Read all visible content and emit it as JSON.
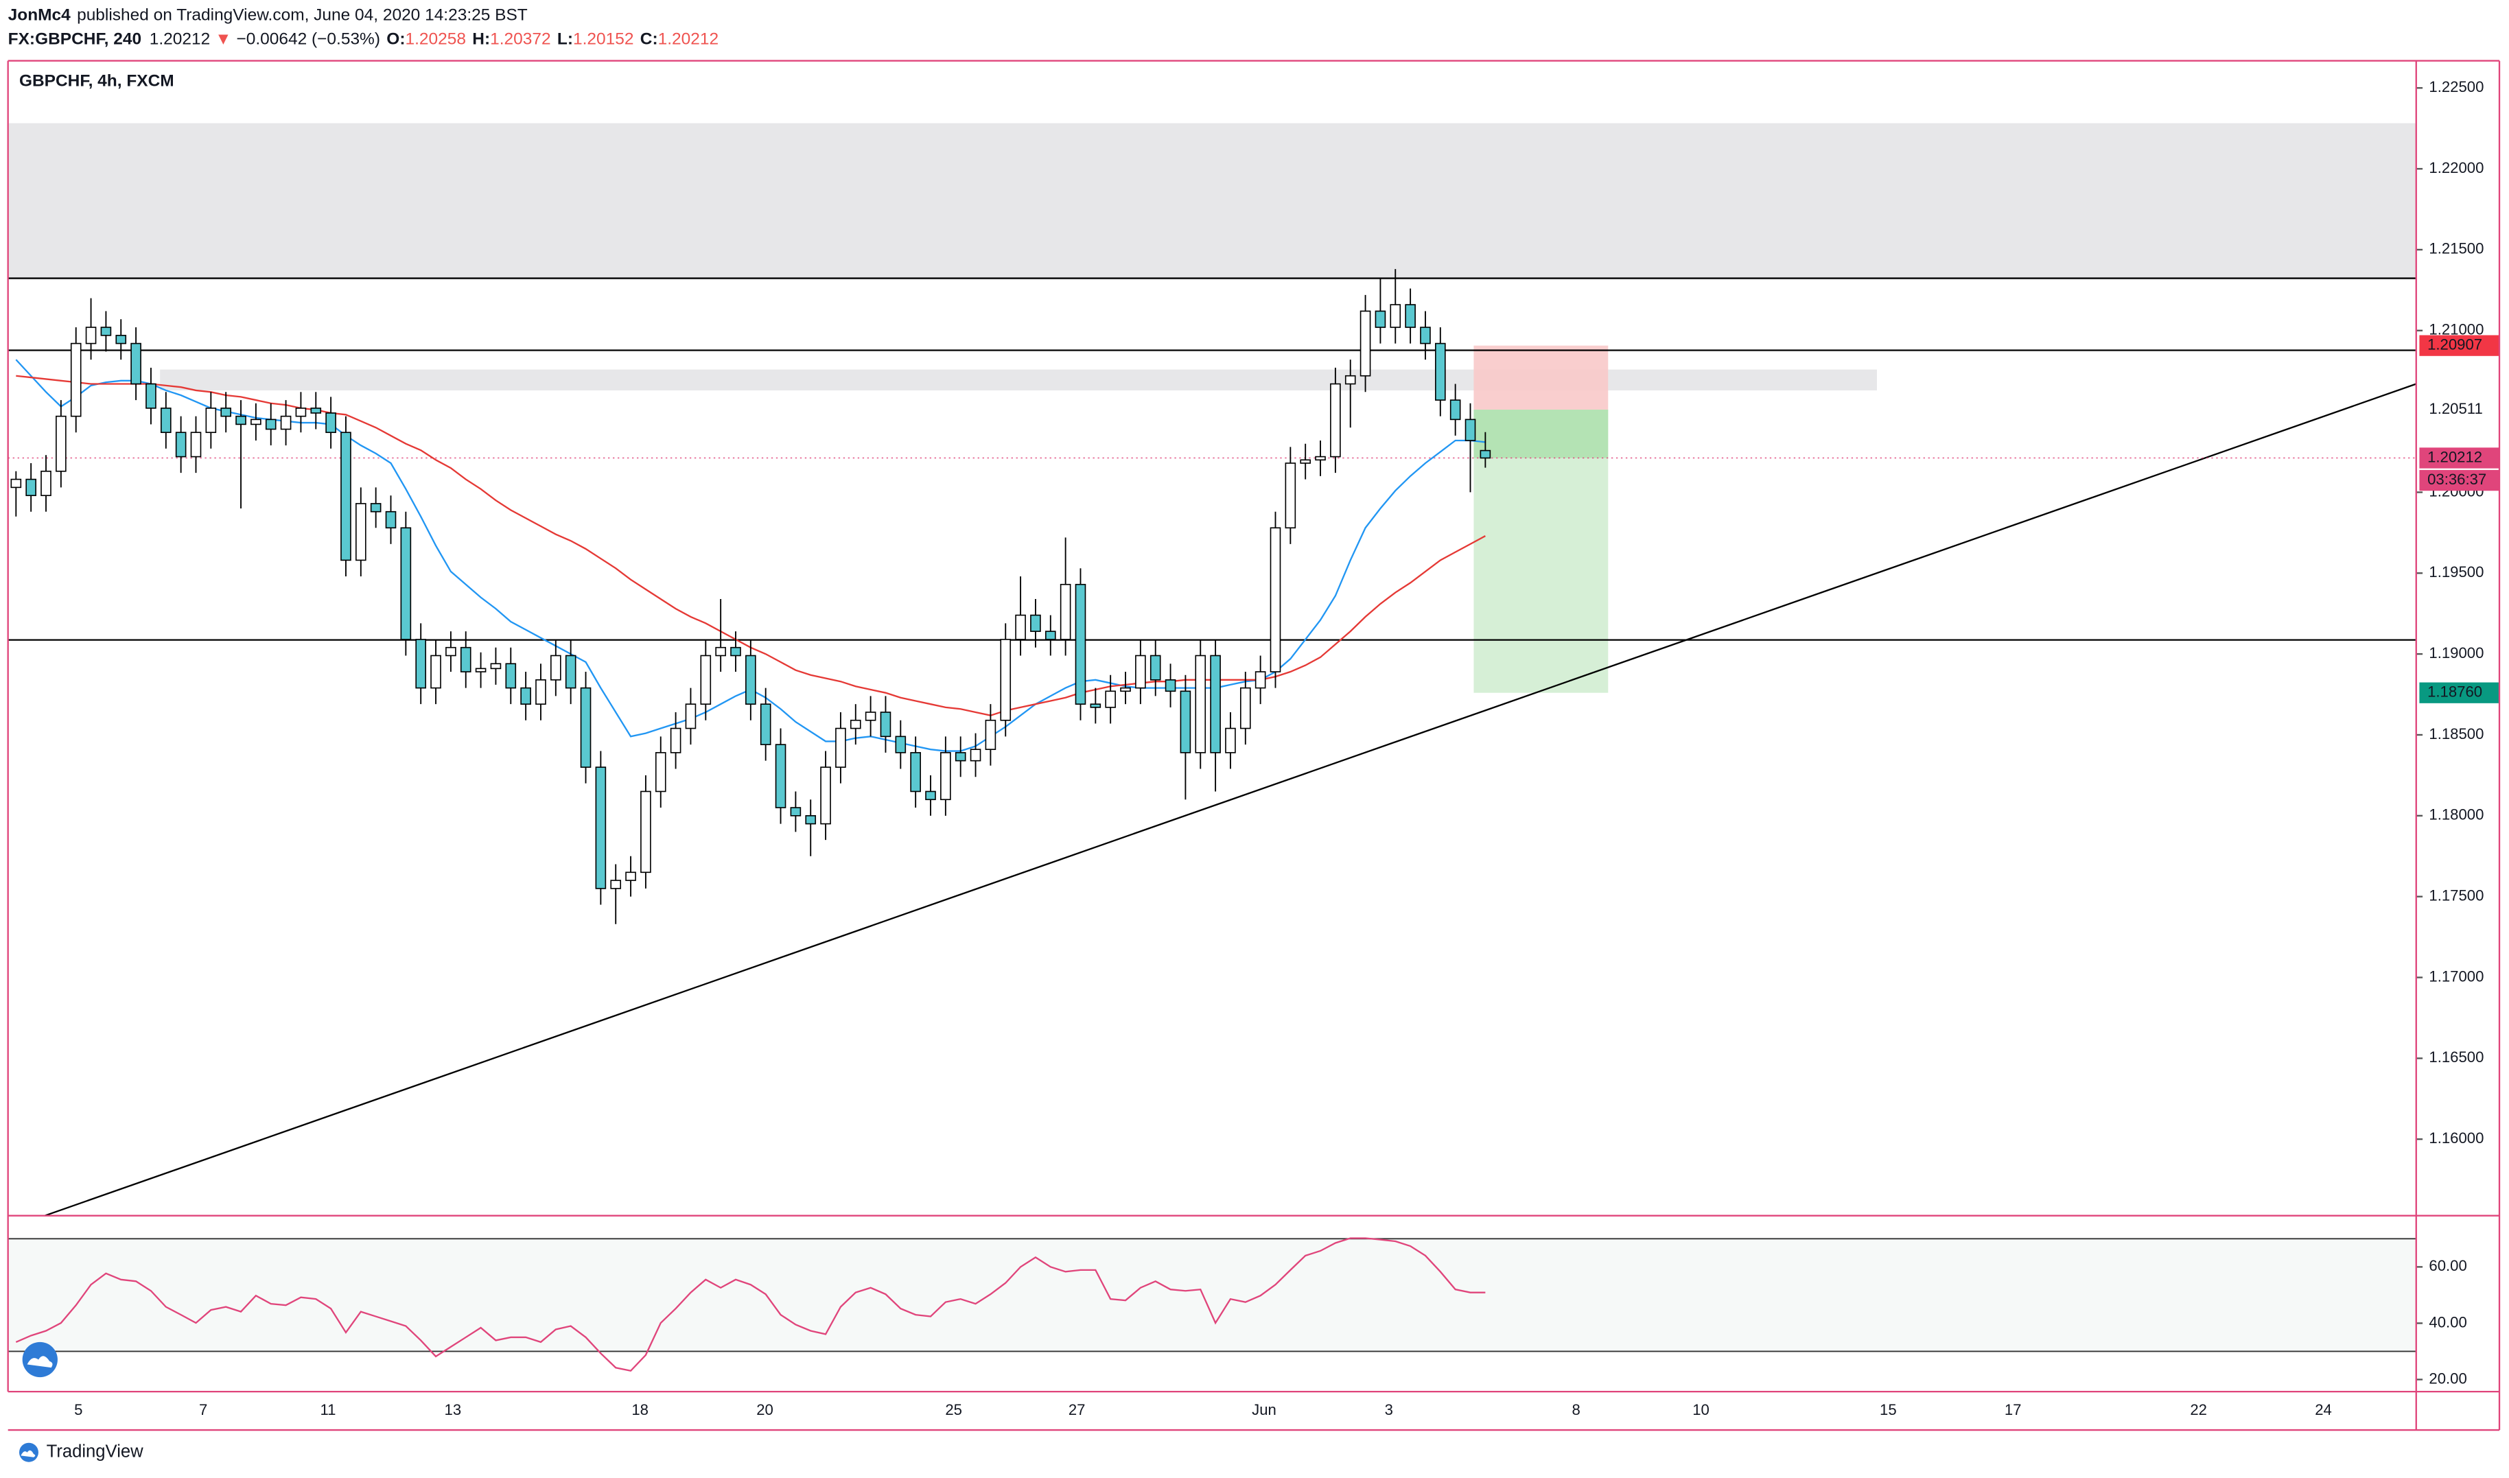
{
  "header": {
    "author": "JonMc4",
    "published": "published on TradingView.com, June 04, 2020 14:23:25 BST",
    "symbol": "FX:GBPCHF, 240",
    "last": "1.20212",
    "arrow": "▼",
    "change": "−0.00642 (−0.53%)",
    "ohlc": [
      {
        "label": "O:",
        "value": "1.20258"
      },
      {
        "label": "H:",
        "value": "1.20372"
      },
      {
        "label": "L:",
        "value": "1.20152"
      },
      {
        "label": "C:",
        "value": "1.20212"
      }
    ]
  },
  "footer": {
    "brand": "TradingView"
  },
  "chart_data": {
    "type": "candlestick",
    "title": "GBPCHF, 4h, FXCM",
    "candles": [
      [
        1.2003,
        1.2013,
        1.1985,
        1.2008
      ],
      [
        1.2008,
        1.2018,
        1.1988,
        1.1998
      ],
      [
        1.1998,
        1.2023,
        1.1988,
        1.2013
      ],
      [
        1.2013,
        1.2057,
        1.2003,
        1.2047
      ],
      [
        1.2047,
        1.2102,
        1.2037,
        1.2092
      ],
      [
        1.2092,
        1.212,
        1.2082,
        1.2102
      ],
      [
        1.2102,
        1.2112,
        1.2087,
        1.2097
      ],
      [
        1.2097,
        1.2107,
        1.2082,
        1.2092
      ],
      [
        1.2092,
        1.2102,
        1.2057,
        1.2067
      ],
      [
        1.2067,
        1.2077,
        1.2042,
        1.2052
      ],
      [
        1.2052,
        1.2062,
        1.2027,
        1.2037
      ],
      [
        1.2037,
        1.2047,
        1.2012,
        1.2022
      ],
      [
        1.2022,
        1.2047,
        1.2012,
        1.2037
      ],
      [
        1.2037,
        1.2062,
        1.2027,
        1.2052
      ],
      [
        1.2052,
        1.2062,
        1.2037,
        1.2047
      ],
      [
        1.2047,
        1.2057,
        1.199,
        1.2042
      ],
      [
        1.2042,
        1.2055,
        1.2032,
        1.2045
      ],
      [
        1.2045,
        1.2055,
        1.2029,
        1.2039
      ],
      [
        1.2039,
        1.2057,
        1.2029,
        1.2047
      ],
      [
        1.2047,
        1.2062,
        1.2037,
        1.2052
      ],
      [
        1.2052,
        1.2062,
        1.2039,
        1.2049
      ],
      [
        1.2049,
        1.2059,
        1.2027,
        1.2037
      ],
      [
        1.2037,
        1.2047,
        1.1948,
        1.1958
      ],
      [
        1.1958,
        1.2003,
        1.1948,
        1.1993
      ],
      [
        1.1993,
        1.2003,
        1.1978,
        1.1988
      ],
      [
        1.1988,
        1.1998,
        1.1968,
        1.1978
      ],
      [
        1.1978,
        1.1988,
        1.1899,
        1.1909
      ],
      [
        1.1909,
        1.1919,
        1.1869,
        1.1879
      ],
      [
        1.1879,
        1.1909,
        1.1869,
        1.1899
      ],
      [
        1.1899,
        1.1914,
        1.1889,
        1.1904
      ],
      [
        1.1904,
        1.1914,
        1.1879,
        1.1889
      ],
      [
        1.1889,
        1.1901,
        1.1879,
        1.1891
      ],
      [
        1.1891,
        1.1904,
        1.1881,
        1.1894
      ],
      [
        1.1894,
        1.1904,
        1.1869,
        1.1879
      ],
      [
        1.1879,
        1.1889,
        1.1859,
        1.1869
      ],
      [
        1.1869,
        1.1894,
        1.1859,
        1.1884
      ],
      [
        1.1884,
        1.1909,
        1.1874,
        1.1899
      ],
      [
        1.1899,
        1.1909,
        1.1869,
        1.1879
      ],
      [
        1.1879,
        1.1889,
        1.182,
        1.183
      ],
      [
        1.183,
        1.184,
        1.1745,
        1.1755
      ],
      [
        1.1755,
        1.177,
        1.1733,
        1.176
      ],
      [
        1.176,
        1.1775,
        1.175,
        1.1765
      ],
      [
        1.1765,
        1.1825,
        1.1755,
        1.1815
      ],
      [
        1.1815,
        1.1849,
        1.1805,
        1.1839
      ],
      [
        1.1839,
        1.1864,
        1.1829,
        1.1854
      ],
      [
        1.1854,
        1.1879,
        1.1844,
        1.1869
      ],
      [
        1.1869,
        1.1909,
        1.1859,
        1.1899
      ],
      [
        1.1899,
        1.1934,
        1.1889,
        1.1904
      ],
      [
        1.1904,
        1.1914,
        1.1889,
        1.1899
      ],
      [
        1.1899,
        1.1909,
        1.1859,
        1.1869
      ],
      [
        1.1869,
        1.1879,
        1.1834,
        1.1844
      ],
      [
        1.1844,
        1.1854,
        1.1795,
        1.1805
      ],
      [
        1.1805,
        1.1815,
        1.179,
        1.18
      ],
      [
        1.18,
        1.181,
        1.1775,
        1.1795
      ],
      [
        1.1795,
        1.184,
        1.1785,
        1.183
      ],
      [
        1.183,
        1.1864,
        1.182,
        1.1854
      ],
      [
        1.1854,
        1.1869,
        1.1844,
        1.1859
      ],
      [
        1.1859,
        1.1874,
        1.1849,
        1.1864
      ],
      [
        1.1864,
        1.1874,
        1.1839,
        1.1849
      ],
      [
        1.1849,
        1.1859,
        1.1829,
        1.1839
      ],
      [
        1.1839,
        1.1849,
        1.1805,
        1.1815
      ],
      [
        1.1815,
        1.1825,
        1.18,
        1.181
      ],
      [
        1.181,
        1.1849,
        1.18,
        1.1839
      ],
      [
        1.1839,
        1.1849,
        1.1824,
        1.1834
      ],
      [
        1.1834,
        1.1851,
        1.1824,
        1.1841
      ],
      [
        1.1841,
        1.1869,
        1.1831,
        1.1859
      ],
      [
        1.1859,
        1.1919,
        1.1849,
        1.1909
      ],
      [
        1.1909,
        1.1948,
        1.1899,
        1.1924
      ],
      [
        1.1924,
        1.1934,
        1.1904,
        1.1914
      ],
      [
        1.1914,
        1.1924,
        1.1899,
        1.1909
      ],
      [
        1.1909,
        1.1972,
        1.1899,
        1.1943
      ],
      [
        1.1943,
        1.1953,
        1.1859,
        1.1869
      ],
      [
        1.1869,
        1.1879,
        1.1857,
        1.1867
      ],
      [
        1.1867,
        1.1887,
        1.1857,
        1.1877
      ],
      [
        1.1877,
        1.1889,
        1.1869,
        1.1879
      ],
      [
        1.1879,
        1.1909,
        1.1869,
        1.1899
      ],
      [
        1.1899,
        1.1909,
        1.1874,
        1.1884
      ],
      [
        1.1884,
        1.1894,
        1.1867,
        1.1877
      ],
      [
        1.1877,
        1.1887,
        1.181,
        1.1839
      ],
      [
        1.1839,
        1.1909,
        1.1829,
        1.1899
      ],
      [
        1.1899,
        1.1909,
        1.1815,
        1.1839
      ],
      [
        1.1839,
        1.1864,
        1.1829,
        1.1854
      ],
      [
        1.1854,
        1.1889,
        1.1844,
        1.1879
      ],
      [
        1.1879,
        1.1899,
        1.1869,
        1.1889
      ],
      [
        1.1889,
        1.1988,
        1.1879,
        1.1978
      ],
      [
        1.1978,
        1.2028,
        1.1968,
        1.2018
      ],
      [
        1.2018,
        1.203,
        1.2008,
        1.202
      ],
      [
        1.202,
        1.2032,
        1.201,
        1.2022
      ],
      [
        1.2022,
        1.2077,
        1.2012,
        1.2067
      ],
      [
        1.2067,
        1.2082,
        1.204,
        1.2072
      ],
      [
        1.2072,
        1.2122,
        1.2062,
        1.2112
      ],
      [
        1.2112,
        1.2132,
        1.2092,
        1.2102
      ],
      [
        1.2102,
        1.2138,
        1.2092,
        1.2116
      ],
      [
        1.2116,
        1.2126,
        1.2092,
        1.2102
      ],
      [
        1.2102,
        1.2112,
        1.2082,
        1.2092
      ],
      [
        1.2092,
        1.2102,
        1.2047,
        1.2057
      ],
      [
        1.2057,
        1.2067,
        1.2035,
        1.2045
      ],
      [
        1.2045,
        1.2055,
        1.2,
        1.2032
      ],
      [
        1.20258,
        1.20372,
        1.20152,
        1.20212
      ]
    ],
    "up_color": "#ffffff",
    "down_color": "#5ac8d0",
    "moving_averages": [
      {
        "color": "#2196f3",
        "values": [
          1.2082,
          1.2072,
          1.2062,
          1.2053,
          1.2059,
          1.2066,
          1.2068,
          1.2069,
          1.2069,
          1.2067,
          1.2063,
          1.206,
          1.2056,
          1.2052,
          1.205,
          1.2048,
          1.2046,
          1.2045,
          1.2044,
          1.2043,
          1.2043,
          1.2042,
          1.2035,
          1.2029,
          1.2024,
          1.2018,
          1.2002,
          1.1985,
          1.1967,
          1.1951,
          1.1943,
          1.1935,
          1.1928,
          1.192,
          1.1915,
          1.191,
          1.1905,
          1.19,
          1.1895,
          1.1879,
          1.1864,
          1.1849,
          1.1851,
          1.1854,
          1.1857,
          1.186,
          1.1864,
          1.1869,
          1.1874,
          1.1878,
          1.1873,
          1.1866,
          1.1858,
          1.1852,
          1.1846,
          1.1846,
          1.1848,
          1.1849,
          1.1847,
          1.1845,
          1.1843,
          1.1841,
          1.184,
          1.184,
          1.1843,
          1.1849,
          1.1855,
          1.1862,
          1.1869,
          1.1874,
          1.1879,
          1.1883,
          1.1884,
          1.1882,
          1.188,
          1.1879,
          1.1879,
          1.1879,
          1.1879,
          1.1879,
          1.1879,
          1.1881,
          1.1883,
          1.1884,
          1.1889,
          1.1897,
          1.1909,
          1.1921,
          1.1936,
          1.1958,
          1.1978,
          1.199,
          1.2001,
          1.201,
          1.2018,
          1.2025,
          1.2032,
          1.2032,
          1.2031
        ]
      },
      {
        "color": "#e53935",
        "values": [
          1.2072,
          1.2071,
          1.207,
          1.2069,
          1.2068,
          1.2067,
          1.2067,
          1.2067,
          1.2067,
          1.2067,
          1.2066,
          1.2065,
          1.2063,
          1.2062,
          1.206,
          1.2059,
          1.2057,
          1.2055,
          1.2054,
          1.2052,
          1.2051,
          1.2049,
          1.2048,
          1.2044,
          1.204,
          1.2035,
          1.203,
          1.2026,
          1.202,
          1.2015,
          1.2008,
          1.2002,
          1.1995,
          1.1989,
          1.1984,
          1.1979,
          1.1974,
          1.197,
          1.1965,
          1.1959,
          1.1953,
          1.1946,
          1.194,
          1.1934,
          1.1928,
          1.1923,
          1.1919,
          1.1914,
          1.1909,
          1.1904,
          1.19,
          1.1895,
          1.189,
          1.1887,
          1.1885,
          1.1883,
          1.188,
          1.1878,
          1.1876,
          1.1873,
          1.1871,
          1.1869,
          1.1867,
          1.1866,
          1.1864,
          1.1862,
          1.1865,
          1.1867,
          1.1869,
          1.1871,
          1.1873,
          1.1876,
          1.1878,
          1.188,
          1.1881,
          1.1882,
          1.1883,
          1.1883,
          1.1884,
          1.1884,
          1.1884,
          1.1884,
          1.1884,
          1.1884,
          1.1886,
          1.1889,
          1.1893,
          1.1898,
          1.1906,
          1.1914,
          1.1923,
          1.1931,
          1.1938,
          1.1944,
          1.1951,
          1.1958,
          1.1963,
          1.1968,
          1.1973
        ]
      }
    ],
    "ylim": [
      1.15527,
      1.22668
    ],
    "yticks": [
      {
        "value": 1.225,
        "label": "1.22500"
      },
      {
        "value": 1.22,
        "label": "1.22000"
      },
      {
        "value": 1.215,
        "label": "1.21500"
      },
      {
        "value": 1.21,
        "label": "1.21000"
      },
      {
        "value": 1.2,
        "label": "1.20000"
      },
      {
        "value": 1.195,
        "label": "1.19500"
      },
      {
        "value": 1.19,
        "label": "1.19000"
      },
      {
        "value": 1.185,
        "label": "1.18500"
      },
      {
        "value": 1.18,
        "label": "1.18000"
      },
      {
        "value": 1.175,
        "label": "1.17500"
      },
      {
        "value": 1.17,
        "label": "1.17000"
      },
      {
        "value": 1.165,
        "label": "1.16500"
      },
      {
        "value": 1.16,
        "label": "1.16000"
      }
    ],
    "x_tick_labels": [
      "5",
      "7",
      "11",
      "13",
      "18",
      "20",
      "25",
      "27",
      "Jun",
      "3",
      "8",
      "10",
      "15",
      "17",
      "22",
      "24"
    ],
    "zones": [
      {
        "from": 1.21323,
        "to": 1.22282
      },
      {
        "from": 1.2063,
        "to": 1.20759
      }
    ],
    "levels": [
      1.21323,
      1.20878,
      1.19087
    ],
    "trendline": [
      1.15527,
      1.2067
    ],
    "position": {
      "entry": {
        "value": 1.20511,
        "label": "1.20511"
      },
      "stop": {
        "value": 1.20907,
        "label": "1.20907"
      },
      "target": {
        "value": 1.1876,
        "label": "1.18760"
      }
    },
    "price": {
      "value": 1.20212,
      "label": "1.20212",
      "countdown": "03:36:37"
    },
    "indicator": {
      "type": "line",
      "color": "#e0457b",
      "ylim": [
        15.7,
        78.2
      ],
      "yticks": [
        {
          "value": 20,
          "label": "20.00"
        },
        {
          "value": 40,
          "label": "40.00"
        },
        {
          "value": 60,
          "label": "60.00"
        }
      ],
      "bands": [
        30,
        70
      ],
      "values": [
        33.3,
        35.6,
        37.3,
        40.1,
        46.4,
        53.7,
        57.7,
        55.5,
        54.9,
        51.5,
        45.8,
        43.0,
        40.1,
        44.7,
        45.8,
        44.1,
        49.8,
        46.9,
        46.4,
        49.2,
        48.6,
        45.2,
        36.7,
        44.1,
        42.4,
        40.7,
        39.0,
        33.9,
        28.2,
        31.6,
        35.0,
        38.4,
        33.9,
        35.0,
        35.0,
        33.3,
        37.8,
        39.0,
        35.0,
        29.3,
        24.2,
        23.1,
        28.7,
        40.1,
        45.2,
        50.9,
        55.5,
        52.6,
        55.5,
        53.7,
        50.3,
        43.0,
        39.5,
        37.3,
        36.1,
        45.8,
        50.9,
        52.6,
        50.3,
        45.2,
        43.0,
        42.4,
        47.5,
        48.6,
        46.9,
        50.3,
        54.3,
        60.0,
        63.4,
        60.0,
        58.3,
        58.9,
        58.9,
        48.6,
        48.1,
        52.6,
        54.9,
        52.0,
        51.5,
        52.0,
        40.1,
        48.6,
        47.5,
        49.8,
        53.7,
        58.9,
        64.0,
        65.7,
        68.5,
        70.2,
        70.2,
        69.7,
        69.1,
        67.4,
        64.0,
        58.3,
        52.0,
        50.9,
        50.9
      ]
    }
  }
}
